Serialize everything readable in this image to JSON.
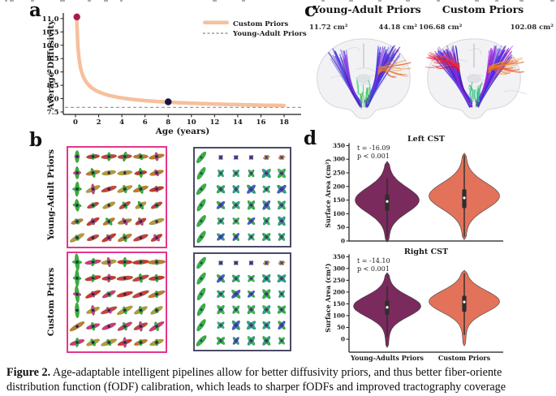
{
  "colors": {
    "curve": "#F6C09C",
    "dashed_line": "#9C9C9C",
    "dot_age0": "#A81A4E",
    "dot_age8": "#16163F",
    "violin_young_adults": "#7A2A5C",
    "violin_custom": "#E2725A",
    "glyph_box_pink_border": "#E5368B",
    "glyph_box_navy_border": "#4A4B66"
  },
  "panel_a": {
    "label": "a"
  },
  "panel_b": {
    "label": "b",
    "rows": [
      {
        "label": "Young-Adult Priors"
      },
      {
        "label": "Custom Priors"
      }
    ]
  },
  "panel_c": {
    "label": "c",
    "groups": [
      {
        "title": "Young-Adult Priors",
        "left_area": "11.72 cm²",
        "right_area": "44.18 cm²"
      },
      {
        "title": "Custom Priors",
        "left_area": "106.68 cm²",
        "right_area": "102.08 cm²"
      }
    ]
  },
  "panel_d": {
    "label": "d"
  },
  "caption": {
    "prefix": "Figure 2.",
    "line1_rest": " Age-adaptable intelligent pipelines allow for better diffusivity priors, and thus better fiber-oriente",
    "line2": "distribution function (fODF) calibration, which leads to sharper fODFs and improved tractography coverage"
  },
  "chart_data": [
    {
      "id": "diffusivity_vs_age",
      "panel": "a",
      "type": "line",
      "title": "",
      "xlabel": "Age (years)",
      "ylabel": "Average Diffusivity",
      "xlim": [
        -1.2,
        19.4
      ],
      "ylim": [
        7.35,
        11.45
      ],
      "xticks": [
        0,
        2,
        4,
        6,
        8,
        10,
        12,
        14,
        16,
        18
      ],
      "yticks": [
        "7.5",
        "8.0",
        "8.5",
        "9.0",
        "9.5",
        "10.0",
        "10.5",
        "11.0"
      ],
      "legend_position": "upper right",
      "series": [
        {
          "name": "Custom Priors",
          "type": "curve",
          "style": "solid",
          "color": "#F6C09C",
          "model": {
            "base": 7.5,
            "a": 1.08,
            "b": 0.518,
            "x_start": 0.1,
            "x_end": 18
          },
          "x": [
            0.1,
            0.5,
            1,
            2,
            4,
            6,
            8,
            10,
            12,
            14,
            16,
            18
          ],
          "y": [
            11.06,
            9.05,
            8.58,
            8.25,
            8.03,
            7.93,
            7.87,
            7.83,
            7.8,
            7.77,
            7.76,
            7.74
          ]
        },
        {
          "name": "Young-Adult Priors",
          "type": "hline",
          "style": "dashed",
          "color": "#9C9C9C",
          "y": 7.67
        }
      ],
      "points": [
        {
          "x": 0.12,
          "y": 11.06,
          "color": "#A81A4E"
        },
        {
          "x": 8,
          "y": 7.88,
          "color": "#16163F"
        }
      ]
    },
    {
      "id": "left_cst",
      "panel": "d",
      "type": "violin",
      "title": "Left CST",
      "ylabel": "Surface Area (cm²)",
      "ylim": [
        0,
        350
      ],
      "yticks": [
        0,
        50,
        100,
        150,
        200,
        250,
        300,
        350
      ],
      "stats": {
        "t": "t = -16.09",
        "p": "p < 0.001"
      },
      "categories": [
        "Young-Adults Priors",
        "Custom Priors"
      ],
      "show_category_labels": false,
      "violins": [
        {
          "name": "Young-Adults Priors",
          "color": "#7A2A5C",
          "median": 145,
          "q1": 110,
          "q3": 172,
          "whisker_low": 15,
          "whisker_high": 230,
          "min": -4,
          "max": 292,
          "peak": 150,
          "sigma": 45,
          "max_halfwidth": 36
        },
        {
          "name": "Custom Priors",
          "color": "#E2725A",
          "median": 158,
          "q1": 120,
          "q3": 190,
          "whisker_low": 15,
          "whisker_high": 315,
          "min": 5,
          "max": 322,
          "peak": 165,
          "sigma": 47,
          "max_halfwidth": 40
        }
      ]
    },
    {
      "id": "right_cst",
      "panel": "d",
      "type": "violin",
      "title": "Right CST",
      "ylabel": "Surface Area (cm²)",
      "ylim": [
        0,
        350
      ],
      "yticks": [
        0,
        50,
        100,
        150,
        200,
        250,
        300,
        350
      ],
      "stats": {
        "t": "t = -14.10",
        "p": "p < 0.001"
      },
      "categories": [
        "Young-Adults Priors",
        "Custom Priors"
      ],
      "show_category_labels": true,
      "violins": [
        {
          "name": "Young-Adults Priors",
          "color": "#7A2A5C",
          "median": 135,
          "q1": 103,
          "q3": 165,
          "whisker_low": 10,
          "whisker_high": 225,
          "min": -35,
          "max": 282,
          "peak": 140,
          "sigma": 43,
          "max_halfwidth": 38
        },
        {
          "name": "Custom Priors",
          "color": "#E2725A",
          "median": 158,
          "q1": 115,
          "q3": 185,
          "whisker_low": 18,
          "whisker_high": 280,
          "min": -28,
          "max": 292,
          "peak": 160,
          "sigma": 45,
          "max_halfwidth": 40
        }
      ]
    }
  ]
}
